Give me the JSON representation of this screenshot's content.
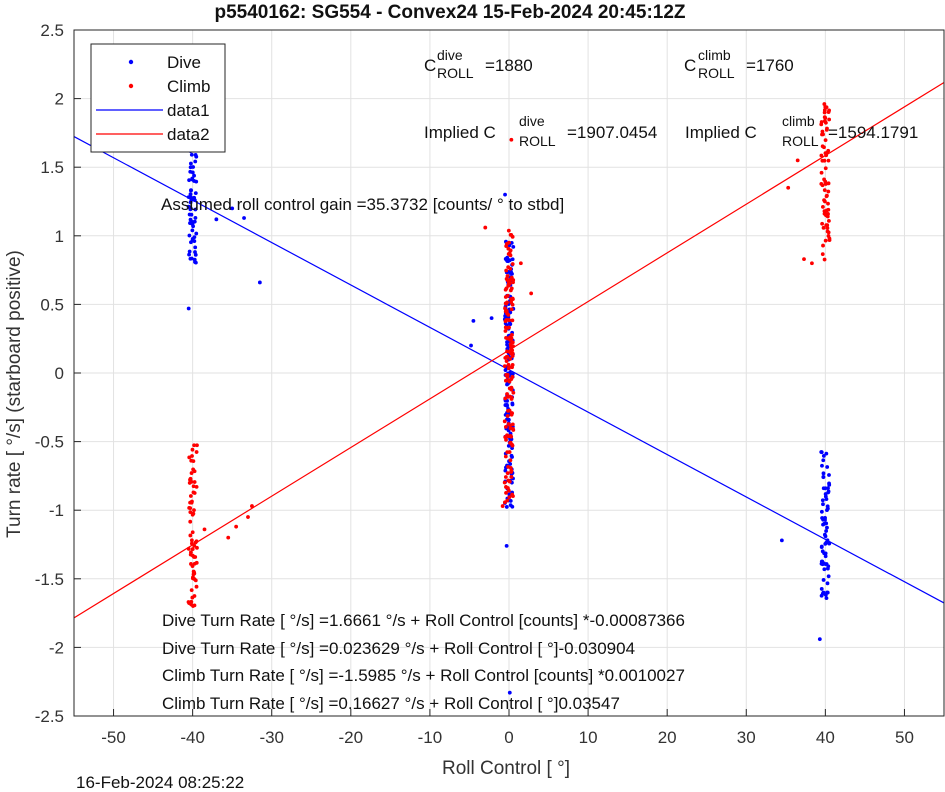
{
  "chart_data": {
    "type": "scatter",
    "title": "p5540162: SG554 - Convex24 15-Feb-2024 20:45:12Z",
    "xlabel": "Roll Control [   °]",
    "ylabel": "Turn rate [   °/s] (starboard positive)",
    "xlim": [
      -55,
      55
    ],
    "ylim": [
      -2.5,
      2.5
    ],
    "xticks": [
      -50,
      -40,
      -30,
      -20,
      -10,
      0,
      10,
      20,
      30,
      40,
      50
    ],
    "yticks": [
      2.5,
      2,
      1.5,
      1,
      0.5,
      0,
      -0.5,
      -1,
      -1.5,
      -2,
      -2.5
    ],
    "grid": true,
    "legend_position": "top-left",
    "series": [
      {
        "name": "Dive",
        "marker": "dot",
        "color": "#0000ff"
      },
      {
        "name": "Climb",
        "marker": "dot",
        "color": "#ff0000"
      },
      {
        "name": "data1",
        "marker": "line",
        "color": "#0000ff",
        "slope": -0.030904,
        "intercept": 0.023629
      },
      {
        "name": "data2",
        "marker": "line",
        "color": "#ff0000",
        "slope": 0.03547,
        "intercept": 0.16627
      }
    ],
    "clusters": [
      {
        "series": "Dive",
        "x": -40,
        "y": [
          0.8,
          1.8
        ],
        "count": 70
      },
      {
        "series": "Dive",
        "x": 0,
        "y": [
          -1.0,
          1.0
        ],
        "count": 150
      },
      {
        "series": "Dive",
        "x": 40,
        "y": [
          -1.65,
          -0.55
        ],
        "count": 70
      },
      {
        "series": "Climb",
        "x": -40,
        "y": [
          -1.7,
          -0.5
        ],
        "count": 70
      },
      {
        "series": "Climb",
        "x": 0,
        "y": [
          -0.95,
          1.05
        ],
        "count": 150
      },
      {
        "series": "Climb",
        "x": 40,
        "y": [
          0.8,
          2.0
        ],
        "count": 70
      }
    ],
    "outliers": [
      {
        "series": "Dive",
        "x": -31.5,
        "y": 0.66
      },
      {
        "series": "Dive",
        "x": -40.5,
        "y": 0.47
      },
      {
        "series": "Dive",
        "x": -37,
        "y": 1.12
      },
      {
        "series": "Dive",
        "x": -35,
        "y": 1.2
      },
      {
        "series": "Dive",
        "x": -33.5,
        "y": 1.13
      },
      {
        "series": "Dive",
        "x": -4.5,
        "y": 0.38
      },
      {
        "series": "Dive",
        "x": -4.8,
        "y": 0.2
      },
      {
        "series": "Dive",
        "x": -2.2,
        "y": 0.4
      },
      {
        "series": "Dive",
        "x": -0.5,
        "y": 1.3
      },
      {
        "series": "Dive",
        "x": -0.3,
        "y": -1.26
      },
      {
        "series": "Dive",
        "x": 0.1,
        "y": -2.33
      },
      {
        "series": "Dive",
        "x": 34.5,
        "y": -1.22
      },
      {
        "series": "Dive",
        "x": 39.3,
        "y": -1.94
      },
      {
        "series": "Climb",
        "x": 0.3,
        "y": 1.7
      },
      {
        "series": "Climb",
        "x": -3,
        "y": 1.06
      },
      {
        "series": "Climb",
        "x": 2.8,
        "y": 0.58
      },
      {
        "series": "Climb",
        "x": 1.5,
        "y": 0.8
      },
      {
        "series": "Climb",
        "x": -0.8,
        "y": -0.97
      },
      {
        "series": "Climb",
        "x": -38.5,
        "y": -1.14
      },
      {
        "series": "Climb",
        "x": -35.5,
        "y": -1.2
      },
      {
        "series": "Climb",
        "x": -34.5,
        "y": -1.12
      },
      {
        "series": "Climb",
        "x": -33,
        "y": -1.05
      },
      {
        "series": "Climb",
        "x": -32.5,
        "y": -0.97
      },
      {
        "series": "Climb",
        "x": 35.3,
        "y": 1.35
      },
      {
        "series": "Climb",
        "x": 36.5,
        "y": 1.55
      },
      {
        "series": "Climb",
        "x": 37.3,
        "y": 0.83
      },
      {
        "series": "Climb",
        "x": 38.3,
        "y": 0.8
      }
    ],
    "annotations": {
      "c_dive_label": "C",
      "c_dive_sup": "dive",
      "c_dive_sub": "ROLL",
      "c_dive_value": "=1880",
      "c_climb_label": "C",
      "c_climb_sup": "climb",
      "c_climb_sub": "ROLL",
      "c_climb_value": "=1760",
      "implied_dive_label": "Implied C",
      "implied_dive_sup": "dive",
      "implied_dive_sub": "ROLL",
      "implied_dive_value": "=1907.0454",
      "implied_climb_label": "Implied C",
      "implied_climb_sup": "climb",
      "implied_climb_sub": "ROLL",
      "implied_climb_value": "=1594.1791",
      "gain_text": "Assumed roll control gain =35.3732 [counts/           ° to stbd]",
      "fit_lines": [
        "Dive Turn Rate [    °/s] =1.6661     °/s + Roll Control [counts] *-0.00087366",
        "Dive Turn Rate [    °/s] =0.023629     °/s + Roll Control [     °]-0.030904",
        "Climb Turn Rate [    °/s] =-1.5985     °/s + Roll Control [counts] *0.0010027",
        "Climb Turn Rate [    °/s] =0.16627     °/s + Roll Control [     °]0.03547"
      ]
    }
  },
  "footer": {
    "timestamp": "16-Feb-2024 08:25:22"
  },
  "colors": {
    "dive": "#0000ff",
    "climb": "#ff0000",
    "grid": "#e2e2e2",
    "axis": "#262626"
  }
}
